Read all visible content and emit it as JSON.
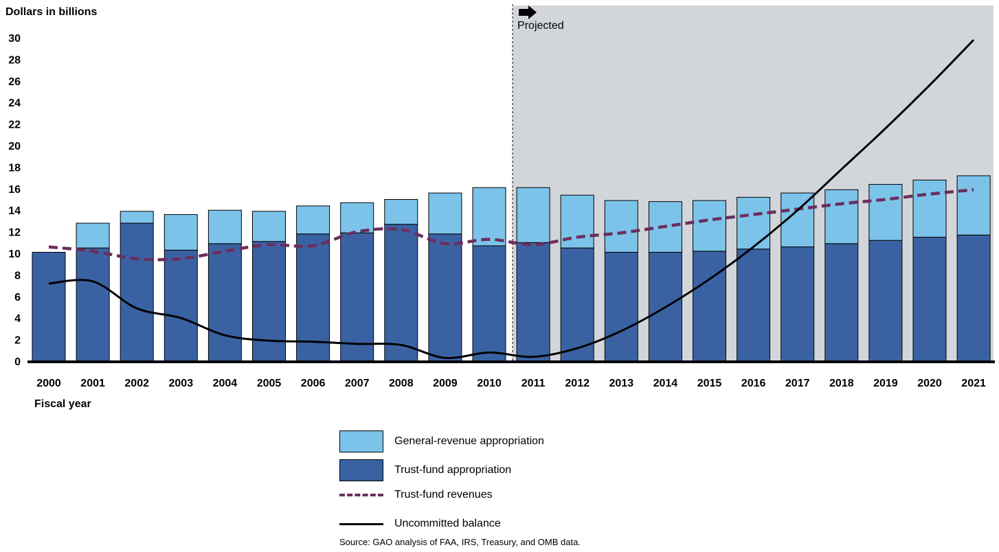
{
  "chart_data": {
    "type": "bar",
    "stacked": true,
    "ylabel": "Dollars in billions",
    "xlabel": "Fiscal year",
    "ylim": [
      0,
      30
    ],
    "yticks": [
      0,
      2,
      4,
      6,
      8,
      10,
      12,
      14,
      16,
      18,
      20,
      22,
      24,
      26,
      28,
      30
    ],
    "categories": [
      "2000",
      "2001",
      "2002",
      "2003",
      "2004",
      "2005",
      "2006",
      "2007",
      "2008",
      "2009",
      "2010",
      "2011",
      "2012",
      "2013",
      "2014",
      "2015",
      "2016",
      "2017",
      "2018",
      "2019",
      "2020",
      "2021"
    ],
    "projection_start": "2011",
    "projection_label": "Projected",
    "series": [
      {
        "name": "Trust-fund appropriation",
        "kind": "bar",
        "values": [
          10.1,
          10.5,
          12.8,
          10.3,
          10.9,
          11.1,
          11.8,
          11.9,
          12.7,
          11.8,
          10.7,
          11.0,
          10.5,
          10.1,
          10.1,
          10.2,
          10.4,
          10.6,
          10.9,
          11.2,
          11.5,
          11.7
        ]
      },
      {
        "name": "General-revenue appropriation",
        "kind": "bar",
        "values": [
          0.0,
          2.3,
          1.1,
          3.3,
          3.1,
          2.8,
          2.6,
          2.8,
          2.3,
          3.8,
          5.4,
          5.1,
          4.9,
          4.8,
          4.7,
          4.7,
          4.8,
          5.0,
          5.0,
          5.2,
          5.3,
          5.5
        ]
      },
      {
        "name": "Trust-fund revenues",
        "kind": "line",
        "style": "dashed",
        "values": [
          10.6,
          10.2,
          9.5,
          9.5,
          10.2,
          10.8,
          10.7,
          12.0,
          12.2,
          10.9,
          11.3,
          10.8,
          11.5,
          11.9,
          12.5,
          13.1,
          13.6,
          14.1,
          14.6,
          15.0,
          15.5,
          15.9
        ]
      },
      {
        "name": "Uncommitted balance",
        "kind": "line",
        "style": "solid",
        "values": [
          7.2,
          7.4,
          4.9,
          4.0,
          2.4,
          1.9,
          1.8,
          1.6,
          1.5,
          0.3,
          0.8,
          0.4,
          1.2,
          2.8,
          5.0,
          7.6,
          10.6,
          14.0,
          17.8,
          21.6,
          25.6,
          29.8
        ]
      }
    ],
    "colors": {
      "trust_fund_appropriation": "#3a62a3",
      "general_revenue_appropriation": "#7cc3ea",
      "trust_fund_revenues": "#6b2e5e",
      "uncommitted_balance": "#000000",
      "projection_shade": "#d2d5d9"
    }
  },
  "legend": [
    {
      "label": "General-revenue appropriation",
      "kind": "swatch",
      "color": "#7cc3ea"
    },
    {
      "label": "Trust-fund appropriation",
      "kind": "swatch",
      "color": "#3a62a3"
    },
    {
      "label": "Trust-fund revenues",
      "kind": "dashed",
      "color": "#6b2e5e"
    },
    {
      "label": "Uncommitted balance",
      "kind": "solid",
      "color": "#000000"
    }
  ],
  "source": "Source: GAO analysis of FAA, IRS, Treasury, and OMB data."
}
